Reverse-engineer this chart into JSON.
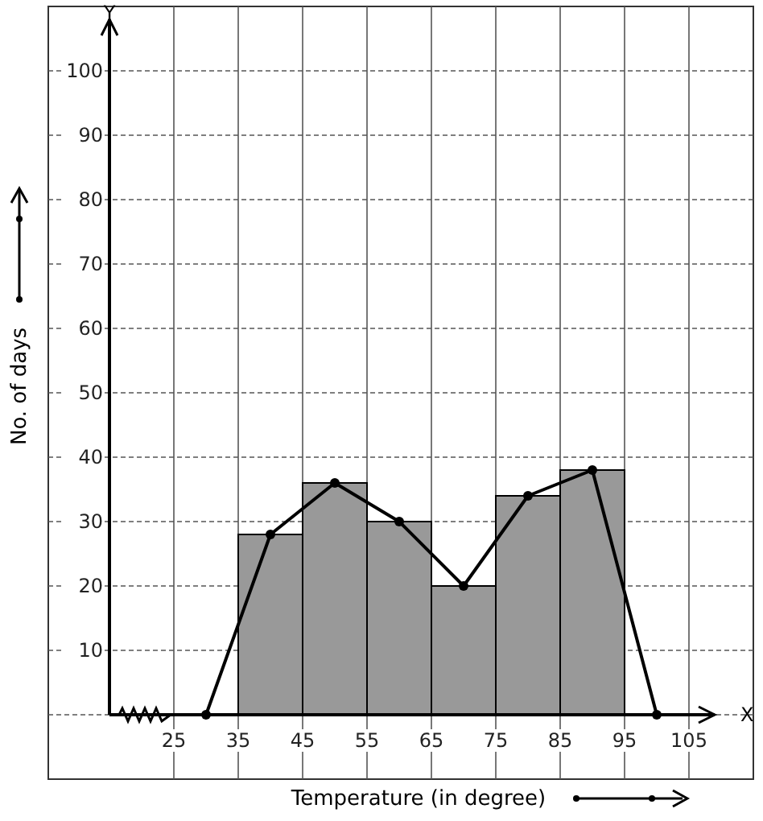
{
  "chart_data": {
    "type": "histogram",
    "xlabel": "Temperature (in degree)",
    "ylabel": "No. of days",
    "bins": [
      35,
      45,
      55,
      65,
      75,
      85,
      95
    ],
    "values": [
      28,
      36,
      30,
      20,
      34,
      38
    ],
    "color": "#999999",
    "series": [
      {
        "type": "line",
        "x": [
          30,
          40,
          50,
          60,
          70,
          80,
          90,
          100
        ],
        "values": [
          0,
          28,
          36,
          30,
          20,
          34,
          38,
          0
        ],
        "color": "#000000"
      }
    ],
    "marker": "circle",
    "line_style": "solid",
    "grid": true,
    "xlim": [
      15,
      115
    ],
    "xticks": [
      25,
      35,
      45,
      55,
      65,
      75,
      85,
      95,
      105
    ],
    "ylim": [
      -10,
      110
    ],
    "yticks": [
      {
        "value": 0,
        "label": null
      },
      10,
      20,
      30,
      40,
      50,
      60,
      70,
      80,
      90,
      100
    ],
    "annotations": [
      "Y",
      "X"
    ]
  }
}
